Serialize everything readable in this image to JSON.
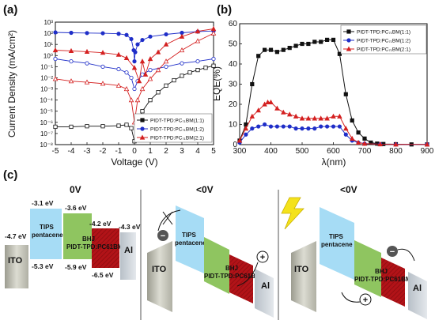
{
  "panel_labels": {
    "a": "(a)",
    "b": "(b)",
    "c": "(c)"
  },
  "chart_data": [
    {
      "type": "line",
      "panel": "a",
      "xlabel": "Voltage (V)",
      "ylabel": "Current Density (mA/cm²)",
      "xlim": [
        -5,
        5
      ],
      "ylim_log10": [
        -8,
        3
      ],
      "y_scale": "log",
      "x_ticks": [
        "-5",
        "-4",
        "-3",
        "-2",
        "-1",
        "0",
        "1",
        "2",
        "3",
        "4",
        "5"
      ],
      "y_ticks": [
        "10³",
        "10²",
        "10¹",
        "10⁰",
        "10⁻¹",
        "10⁻²",
        "10⁻³",
        "10⁻⁴",
        "10⁻⁵",
        "10⁻⁶",
        "10⁻⁷",
        "10⁻⁸"
      ],
      "legend_position": "bottom-right",
      "series": [
        {
          "name": "PIDT-TPD:PC₇₁BM(1:1)",
          "color": "#111111",
          "marker": "square",
          "dark_x": [
            -5,
            -4,
            -3,
            -2,
            -1,
            -0.5,
            -0.2,
            0,
            0.2,
            0.5,
            1,
            1.5,
            2,
            2.5,
            3,
            3.5,
            4,
            4.5,
            5
          ],
          "dark_y": [
            4e-07,
            4e-07,
            4.5e-07,
            4.5e-07,
            5e-07,
            6e-07,
            3e-07,
            2e-08,
            1e-06,
            1e-05,
            0.0001,
            0.0005,
            0.002,
            0.006,
            0.015,
            0.03,
            0.05,
            0.08,
            0.12
          ]
        },
        {
          "name": "PIDT-TPD:PC₇₁BM(1:2)",
          "color": "#1f2ec8",
          "marker": "circle",
          "light_x": [
            -5,
            -4,
            -3,
            -2,
            -1,
            -0.5,
            -0.2,
            -0.05,
            0,
            0.05,
            0.2,
            0.5,
            1,
            2,
            3,
            4,
            5
          ],
          "light_y": [
            120,
            110,
            105,
            100,
            90,
            70,
            30,
            3,
            0.3,
            2,
            10,
            25,
            50,
            80,
            110,
            140,
            160
          ],
          "dark_x": [
            -5,
            -4,
            -3,
            -2,
            -1,
            -0.5,
            -0.2,
            0,
            0.2,
            0.5,
            1,
            2,
            3,
            4,
            5
          ],
          "dark_y": [
            0.5,
            0.3,
            0.2,
            0.1,
            0.06,
            0.03,
            0.01,
            0.001,
            0.005,
            0.02,
            0.05,
            0.1,
            0.2,
            0.3,
            0.5
          ]
        },
        {
          "name": "PIDT-TPD:PC₇₁BM(2:1)",
          "color": "#d42020",
          "marker": "triangle",
          "light_x": [
            -5,
            -4,
            -3,
            -2,
            -1,
            -0.5,
            0,
            0.3,
            0.5,
            0.7,
            1,
            1.5,
            2,
            3,
            4,
            5
          ],
          "light_y": [
            3,
            2.6,
            2.2,
            1.8,
            1.2,
            0.6,
            0.08,
            0.005,
            0.3,
            0.02,
            0.5,
            2,
            10,
            50,
            150,
            250
          ],
          "dark_x": [
            -5,
            -4,
            -3,
            -2,
            -1,
            -0.5,
            -0.2,
            0,
            0.2,
            0.5,
            1,
            1.5,
            2,
            3,
            4,
            5
          ],
          "dark_y": [
            0.008,
            0.005,
            0.004,
            0.003,
            0.002,
            0.001,
            0.0001,
            1e-06,
            0.0001,
            0.001,
            0.008,
            0.05,
            0.3,
            3,
            20,
            100
          ]
        }
      ]
    },
    {
      "type": "line",
      "panel": "b",
      "xlabel": "λ(nm)",
      "ylabel": "EQE(%)",
      "xlim": [
        300,
        900
      ],
      "ylim": [
        0,
        60
      ],
      "x_ticks": [
        "300",
        "400",
        "500",
        "600",
        "700",
        "800",
        "900"
      ],
      "y_ticks": [
        "0",
        "10",
        "20",
        "30",
        "40",
        "50",
        "60"
      ],
      "legend_position": "top-right",
      "series": [
        {
          "name": "PIDT-TPD:PC₇₁BM(1:1)",
          "color": "#111111",
          "marker": "square",
          "x": [
            300,
            320,
            340,
            360,
            380,
            400,
            420,
            440,
            460,
            480,
            500,
            520,
            540,
            560,
            580,
            600,
            620,
            640,
            660,
            680,
            700,
            720,
            740,
            760,
            800,
            850,
            900
          ],
          "y": [
            2,
            10,
            30,
            44,
            47,
            47,
            46,
            47,
            48,
            49,
            50,
            50,
            51,
            51,
            52,
            52,
            45,
            25,
            12,
            6,
            3,
            1,
            0.5,
            0.3,
            0.2,
            0.1,
            0.1
          ]
        },
        {
          "name": "PIDT-TPD:PC₇₁BM(1:2)",
          "color": "#1f2ec8",
          "marker": "circle",
          "x": [
            300,
            320,
            340,
            360,
            380,
            400,
            420,
            440,
            460,
            480,
            500,
            520,
            540,
            560,
            580,
            600,
            620,
            640,
            660,
            680,
            700,
            750,
            800,
            900
          ],
          "y": [
            1,
            5,
            8,
            9,
            10,
            9,
            9,
            9,
            9,
            8,
            8,
            8,
            8,
            9,
            9,
            9,
            9,
            5,
            2,
            1,
            0.5,
            0.2,
            0.1,
            0.1
          ]
        },
        {
          "name": "PIDT-TPD:PC₇₁BM(2:1)",
          "color": "#d42020",
          "marker": "triangle",
          "x": [
            300,
            320,
            340,
            360,
            380,
            390,
            400,
            420,
            440,
            460,
            480,
            500,
            520,
            540,
            560,
            580,
            600,
            620,
            640,
            660,
            680,
            700,
            750,
            800,
            900
          ],
          "y": [
            2,
            8,
            14,
            17,
            20,
            21,
            21,
            18,
            16,
            15,
            14,
            13,
            13,
            13,
            13,
            13,
            14,
            14,
            8,
            3,
            1,
            0.5,
            0.2,
            0.1,
            0.1
          ]
        }
      ]
    }
  ],
  "diagram": {
    "states": [
      "0V",
      "<0V",
      "<0V"
    ],
    "energy_levels": {
      "ito": "-4.7 eV",
      "tips_lumo": "-3.1 eV",
      "tips_homo": "-5.3 eV",
      "bhj_donor_lumo": "-3.6 eV",
      "bhj_donor_homo": "-5.9 eV",
      "bhj_acceptor_lumo": "-4.2 eV",
      "bhj_acceptor_homo": "-6.5 eV",
      "al": "-4.3 eV"
    },
    "layer_labels": {
      "ito": "ITO",
      "tips": "TIPS",
      "pentacene": "pentacene",
      "bhj": "BHJ",
      "bhj_material": "PIDT-TPD:PC61BM",
      "al": "Al"
    },
    "charge_signs": {
      "minus": "−",
      "plus": "+"
    },
    "colors": {
      "ito": "#b9b9ad",
      "tips": "#a6dcf5",
      "donor": "#8fc560",
      "acceptor": "#b21318",
      "al": "#c9d0d7",
      "lightning": "#f4e21b"
    }
  }
}
